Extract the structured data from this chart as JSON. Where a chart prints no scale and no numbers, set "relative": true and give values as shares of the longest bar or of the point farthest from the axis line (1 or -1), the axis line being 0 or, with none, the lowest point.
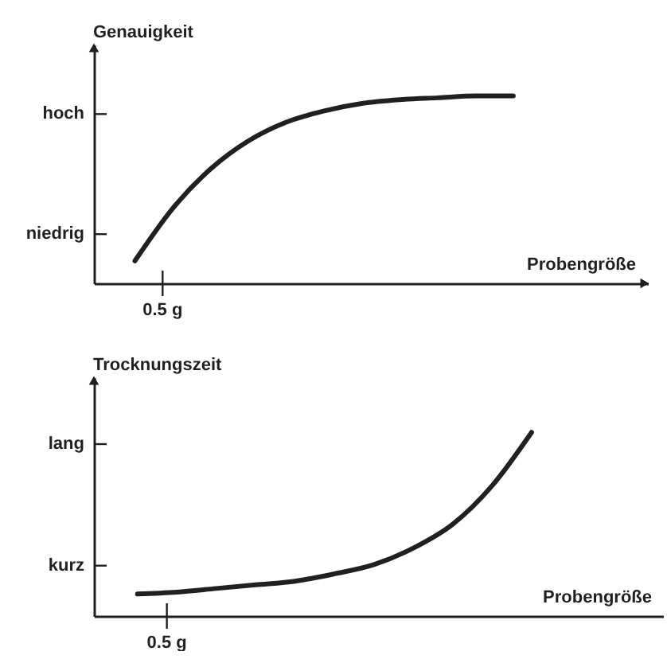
{
  "chart_data": [
    {
      "type": "line",
      "relative": true,
      "xlabel": "Probengröße",
      "ylabel": "Genauigkeit",
      "color": "#231f20",
      "categories": [
        null,
        null,
        null,
        null,
        null,
        null,
        null,
        null,
        null,
        null,
        null
      ],
      "values": [
        0.12,
        0.4,
        0.61,
        0.76,
        0.86,
        0.92,
        0.96,
        0.98,
        0.99,
        1.0,
        1.0
      ],
      "annotations": [
        "0.5 g",
        "niedrig",
        "hoch"
      ]
    },
    {
      "type": "line",
      "relative": true,
      "xlabel": "Probengröße",
      "ylabel": "Trocknungszeit",
      "color": "#231f20",
      "categories": [
        null,
        null,
        null,
        null,
        null,
        null,
        null,
        null,
        null,
        null,
        null
      ],
      "values": [
        0.12,
        0.13,
        0.15,
        0.17,
        0.19,
        0.23,
        0.28,
        0.37,
        0.5,
        0.71,
        1.0
      ],
      "annotations": [
        "0.5 g",
        "kurz",
        "lang"
      ]
    }
  ]
}
